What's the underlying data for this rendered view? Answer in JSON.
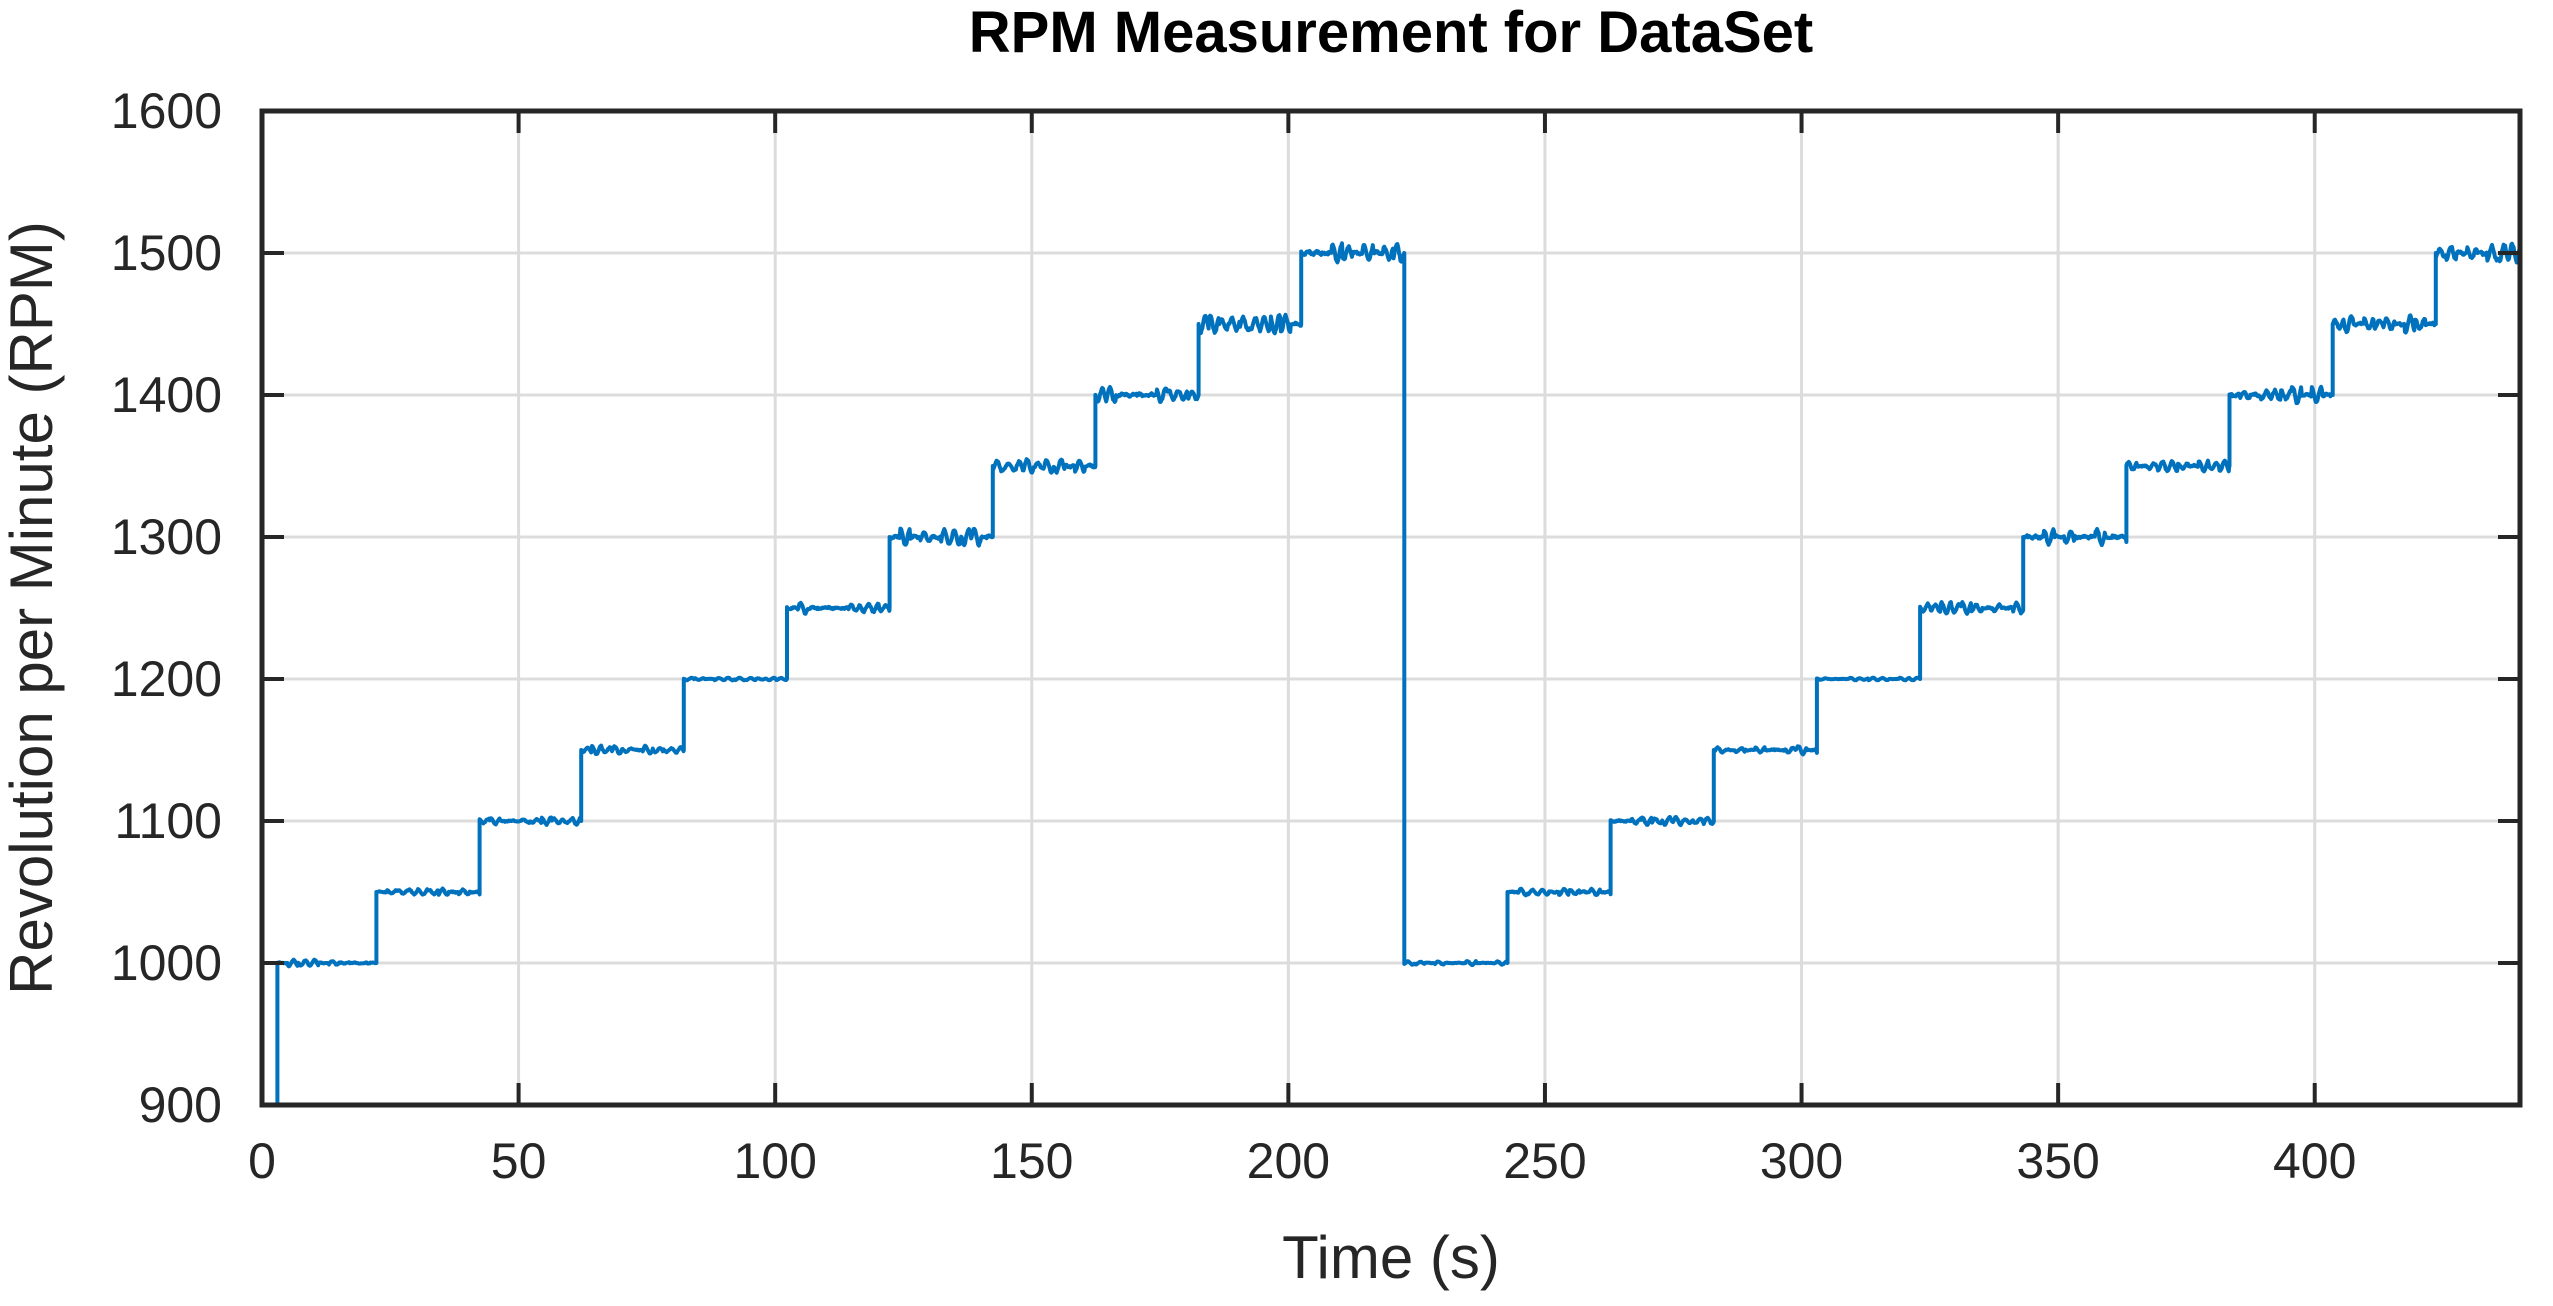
{
  "chart_data": {
    "type": "line",
    "title": "RPM Measurement for DataSet",
    "xlabel": "Time (s)",
    "ylabel": "Revolution per Minute (RPM)",
    "xlim": [
      0,
      440
    ],
    "ylim": [
      900,
      1600
    ],
    "xticks": [
      0,
      50,
      100,
      150,
      200,
      250,
      300,
      350,
      400
    ],
    "yticks": [
      900,
      1000,
      1100,
      1200,
      1300,
      1400,
      1500,
      1600
    ],
    "grid": true,
    "legend": "none",
    "series_name": "RPM",
    "line_color": "#0072BD",
    "grid_color": "#DCDCDC",
    "axis_color": "#262626",
    "background_color": "#FFFFFF",
    "line_width": 4,
    "start_point": {
      "t": 3.0,
      "rpm": 900
    },
    "noise_seed": 7,
    "noise_freq_hz": 0.55,
    "steps": [
      {
        "t_start": 3.0,
        "t_end": 22.3,
        "rpm": 1000,
        "noise": 2.5
      },
      {
        "t_start": 22.3,
        "t_end": 42.4,
        "rpm": 1050,
        "noise": 2.5
      },
      {
        "t_start": 42.4,
        "t_end": 62.2,
        "rpm": 1100,
        "noise": 3
      },
      {
        "t_start": 62.2,
        "t_end": 82.2,
        "rpm": 1150,
        "noise": 3
      },
      {
        "t_start": 82.2,
        "t_end": 102.3,
        "rpm": 1200,
        "noise": 1
      },
      {
        "t_start": 102.3,
        "t_end": 122.3,
        "rpm": 1250,
        "noise": 4
      },
      {
        "t_start": 122.3,
        "t_end": 142.4,
        "rpm": 1300,
        "noise": 6
      },
      {
        "t_start": 142.4,
        "t_end": 162.4,
        "rpm": 1350,
        "noise": 5
      },
      {
        "t_start": 162.4,
        "t_end": 182.5,
        "rpm": 1400,
        "noise": 6
      },
      {
        "t_start": 182.5,
        "t_end": 202.5,
        "rpm": 1450,
        "noise": 6
      },
      {
        "t_start": 202.5,
        "t_end": 222.6,
        "rpm": 1500,
        "noise": 7
      },
      {
        "t_start": 222.6,
        "t_end": 242.7,
        "rpm": 1000,
        "noise": 1.5
      },
      {
        "t_start": 242.7,
        "t_end": 262.8,
        "rpm": 1050,
        "noise": 2.5
      },
      {
        "t_start": 262.8,
        "t_end": 282.9,
        "rpm": 1100,
        "noise": 3
      },
      {
        "t_start": 282.9,
        "t_end": 303.0,
        "rpm": 1150,
        "noise": 3
      },
      {
        "t_start": 303.0,
        "t_end": 323.1,
        "rpm": 1200,
        "noise": 1
      },
      {
        "t_start": 323.1,
        "t_end": 343.2,
        "rpm": 1250,
        "noise": 4
      },
      {
        "t_start": 343.2,
        "t_end": 363.3,
        "rpm": 1300,
        "noise": 6
      },
      {
        "t_start": 363.3,
        "t_end": 383.4,
        "rpm": 1350,
        "noise": 4
      },
      {
        "t_start": 383.4,
        "t_end": 403.5,
        "rpm": 1400,
        "noise": 6
      },
      {
        "t_start": 403.5,
        "t_end": 423.6,
        "rpm": 1450,
        "noise": 6
      },
      {
        "t_start": 423.6,
        "t_end": 440.0,
        "rpm": 1500,
        "noise": 7
      }
    ]
  }
}
